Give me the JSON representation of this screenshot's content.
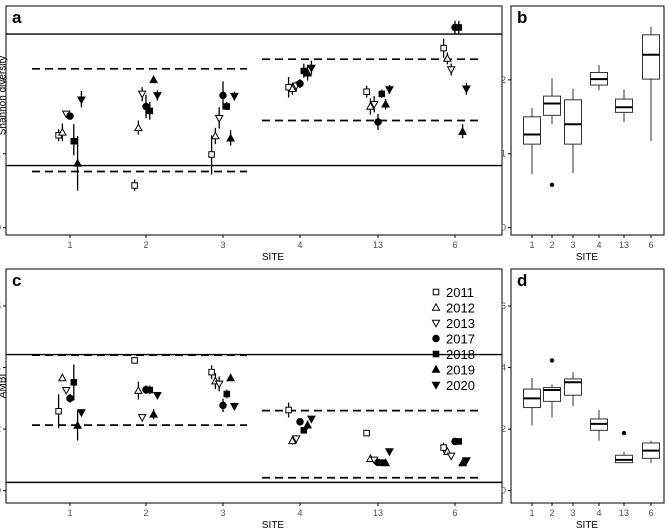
{
  "figure": {
    "symbols": {
      "2011": "open-square",
      "2012": "open-triangle-up",
      "2013": "open-triangle-down",
      "2017": "filled-circle",
      "2018": "filled-square",
      "2019": "filled-triangle-up",
      "2020": "filled-triangle-down"
    },
    "colors": {
      "marker": "#000000",
      "open_fill": "#ffffff",
      "box_fill": "#ffffff"
    }
  },
  "chart_data": [
    {
      "panel_id": "a",
      "type": "scatter",
      "title": "a",
      "xlabel": "SITE",
      "ylabel": "Shannon diversity",
      "categories": [
        "1",
        "2",
        "3",
        "4",
        "13",
        "6"
      ],
      "ylim": [
        -0.1,
        3.0
      ],
      "yticks": [
        0,
        1,
        2
      ],
      "grid": false,
      "reference_lines": [
        {
          "style": "solid",
          "y": 2.62,
          "x_from": "1",
          "x_to": "6"
        },
        {
          "style": "solid",
          "y": 0.84,
          "x_from": "1",
          "x_to": "6"
        },
        {
          "style": "dashed",
          "y": 2.15,
          "x_from": "1",
          "x_to": "3"
        },
        {
          "style": "dashed",
          "y": 0.76,
          "x_from": "1",
          "x_to": "3"
        },
        {
          "style": "dashed",
          "y": 2.28,
          "x_from": "4",
          "x_to": "6"
        },
        {
          "style": "dashed",
          "y": 1.45,
          "x_from": "4",
          "x_to": "6"
        }
      ],
      "series": [
        {
          "name": "2011",
          "points": [
            {
              "site": "1",
              "value": 1.25,
              "low": 1.17,
              "high": 1.33
            },
            {
              "site": "2",
              "value": 0.57,
              "low": 0.5,
              "high": 0.65
            },
            {
              "site": "3",
              "value": 0.99,
              "low": 0.72,
              "high": 1.25
            },
            {
              "site": "4",
              "value": 1.9,
              "low": 1.76,
              "high": 2.04
            },
            {
              "site": "13",
              "value": 1.84,
              "low": 1.76,
              "high": 1.92
            },
            {
              "site": "6",
              "value": 2.43,
              "low": 2.3,
              "high": 2.56
            }
          ]
        },
        {
          "name": "2012",
          "points": [
            {
              "site": "1",
              "value": 1.29,
              "low": 1.17,
              "high": 1.41
            },
            {
              "site": "2",
              "value": 1.35,
              "low": 1.26,
              "high": 1.45
            },
            {
              "site": "3",
              "value": 1.24,
              "low": 1.13,
              "high": 1.35
            },
            {
              "site": "4",
              "value": 1.88,
              "low": 1.8,
              "high": 1.96
            },
            {
              "site": "13",
              "value": 1.64,
              "low": 1.53,
              "high": 1.75
            },
            {
              "site": "6",
              "value": 2.29,
              "low": 2.21,
              "high": 2.37
            }
          ]
        },
        {
          "name": "2013",
          "points": [
            {
              "site": "1",
              "value": 1.54,
              "low": 1.52,
              "high": 1.57
            },
            {
              "site": "2",
              "value": 1.81,
              "low": 1.71,
              "high": 1.9
            },
            {
              "site": "3",
              "value": 1.48,
              "low": 1.34,
              "high": 1.63
            },
            {
              "site": "4",
              "value": 1.92,
              "low": 1.85,
              "high": 1.98
            },
            {
              "site": "13",
              "value": 1.67,
              "low": 1.56,
              "high": 1.78
            },
            {
              "site": "6",
              "value": 2.14,
              "low": 2.06,
              "high": 2.22
            }
          ]
        },
        {
          "name": "2017",
          "points": [
            {
              "site": "1",
              "value": 1.51,
              "low": 1.48,
              "high": 1.54
            },
            {
              "site": "2",
              "value": 1.64,
              "low": 1.48,
              "high": 1.8
            },
            {
              "site": "3",
              "value": 1.79,
              "low": 1.6,
              "high": 1.98
            },
            {
              "site": "4",
              "value": 1.95,
              "low": 1.89,
              "high": 2.01
            },
            {
              "site": "13",
              "value": 1.43,
              "low": 1.32,
              "high": 1.54
            },
            {
              "site": "6",
              "value": 2.71,
              "low": 2.62,
              "high": 2.8
            }
          ]
        },
        {
          "name": "2018",
          "points": [
            {
              "site": "1",
              "value": 1.17,
              "low": 0.98,
              "high": 1.4
            },
            {
              "site": "2",
              "value": 1.58,
              "low": 1.46,
              "high": 1.7
            },
            {
              "site": "3",
              "value": 1.64,
              "low": 1.59,
              "high": 1.7
            },
            {
              "site": "4",
              "value": 2.12,
              "low": 2.03,
              "high": 2.22
            },
            {
              "site": "13",
              "value": 1.81,
              "low": 1.76,
              "high": 1.87
            },
            {
              "site": "6",
              "value": 2.71,
              "low": 2.62,
              "high": 2.8
            }
          ]
        },
        {
          "name": "2019",
          "points": [
            {
              "site": "1",
              "value": 0.87,
              "low": 0.5,
              "high": 1.24
            },
            {
              "site": "2",
              "value": 2.0,
              "low": 1.97,
              "high": 2.04
            },
            {
              "site": "3",
              "value": 1.21,
              "low": 1.11,
              "high": 1.32
            },
            {
              "site": "4",
              "value": 2.09,
              "low": 1.99,
              "high": 2.2
            },
            {
              "site": "13",
              "value": 1.67,
              "low": 1.6,
              "high": 1.74
            },
            {
              "site": "6",
              "value": 1.3,
              "low": 1.21,
              "high": 1.4
            }
          ]
        },
        {
          "name": "2020",
          "points": [
            {
              "site": "1",
              "value": 1.73,
              "low": 1.63,
              "high": 1.85
            },
            {
              "site": "2",
              "value": 1.79,
              "low": 1.72,
              "high": 1.86
            },
            {
              "site": "3",
              "value": 1.78,
              "low": 1.72,
              "high": 1.84
            },
            {
              "site": "4",
              "value": 2.16,
              "low": 2.07,
              "high": 2.26
            },
            {
              "site": "13",
              "value": 1.87,
              "low": 1.81,
              "high": 1.93
            },
            {
              "site": "6",
              "value": 1.88,
              "low": 1.8,
              "high": 1.96
            }
          ]
        }
      ]
    },
    {
      "panel_id": "b",
      "type": "box",
      "title": "b",
      "xlabel": "SITE",
      "categories": [
        "1",
        "2",
        "3",
        "4",
        "13",
        "6"
      ],
      "ylim": [
        -0.1,
        3.0
      ],
      "yticks": [
        0,
        1,
        2
      ],
      "grid": false,
      "boxes": [
        {
          "site": "1",
          "min": 0.72,
          "q1": 1.13,
          "median": 1.26,
          "q3": 1.5,
          "max": 1.62,
          "outliers": []
        },
        {
          "site": "2",
          "min": 1.4,
          "q1": 1.52,
          "median": 1.68,
          "q3": 1.78,
          "max": 2.02,
          "outliers": [
            0.58
          ]
        },
        {
          "site": "3",
          "min": 0.74,
          "q1": 1.13,
          "median": 1.4,
          "q3": 1.73,
          "max": 1.88,
          "outliers": []
        },
        {
          "site": "4",
          "min": 1.86,
          "q1": 1.93,
          "median": 2.01,
          "q3": 2.1,
          "max": 2.2,
          "outliers": []
        },
        {
          "site": "13",
          "min": 1.43,
          "q1": 1.56,
          "median": 1.63,
          "q3": 1.74,
          "max": 1.87,
          "outliers": []
        },
        {
          "site": "6",
          "min": 1.17,
          "q1": 2.01,
          "median": 2.34,
          "q3": 2.61,
          "max": 2.72,
          "outliers": []
        }
      ]
    },
    {
      "panel_id": "c",
      "type": "scatter",
      "title": "c",
      "xlabel": "SITE",
      "ylabel": "AMBI",
      "categories": [
        "1",
        "2",
        "3",
        "4",
        "13",
        "6"
      ],
      "ylim": [
        -0.4,
        7.2
      ],
      "yticks": [
        0,
        2,
        4,
        6
      ],
      "grid": false,
      "legend": {
        "position": "top-right",
        "entries": [
          "2011",
          "2012",
          "2013",
          "2017",
          "2018",
          "2019",
          "2020"
        ]
      },
      "reference_lines": [
        {
          "style": "solid",
          "y": 4.42,
          "x_from": "1",
          "x_to": "6"
        },
        {
          "style": "solid",
          "y": 0.27,
          "x_from": "1",
          "x_to": "6"
        },
        {
          "style": "dashed",
          "y": 4.4,
          "x_from": "1",
          "x_to": "3"
        },
        {
          "style": "dashed",
          "y": 2.13,
          "x_from": "1",
          "x_to": "3"
        },
        {
          "style": "dashed",
          "y": 2.6,
          "x_from": "4",
          "x_to": "6"
        },
        {
          "style": "dashed",
          "y": 0.42,
          "x_from": "4",
          "x_to": "6"
        }
      ],
      "series": [
        {
          "name": "2011",
          "points": [
            {
              "site": "1",
              "value": 2.58,
              "low": 2.03,
              "high": 3.13
            },
            {
              "site": "2",
              "value": 4.23,
              "low": 4.17,
              "high": 4.3
            },
            {
              "site": "3",
              "value": 3.85,
              "low": 3.63,
              "high": 4.07
            },
            {
              "site": "4",
              "value": 2.62,
              "low": 2.38,
              "high": 2.86
            },
            {
              "site": "13",
              "value": 1.87,
              "low": 1.82,
              "high": 1.92
            },
            {
              "site": "6",
              "value": 1.4,
              "low": 1.24,
              "high": 1.56
            }
          ]
        },
        {
          "name": "2012",
          "points": [
            {
              "site": "1",
              "value": 3.66,
              "low": 3.58,
              "high": 3.75
            },
            {
              "site": "2",
              "value": 3.25,
              "low": 2.96,
              "high": 3.54
            },
            {
              "site": "3",
              "value": 3.56,
              "low": 3.3,
              "high": 3.82
            },
            {
              "site": "4",
              "value": 1.62,
              "low": 1.5,
              "high": 1.75
            },
            {
              "site": "13",
              "value": 1.04,
              "low": 0.98,
              "high": 1.1
            },
            {
              "site": "6",
              "value": 1.27,
              "low": 1.18,
              "high": 1.37
            }
          ]
        },
        {
          "name": "2013",
          "points": [
            {
              "site": "1",
              "value": 3.26,
              "low": 3.18,
              "high": 3.35
            },
            {
              "site": "2",
              "value": 2.38,
              "low": 2.33,
              "high": 2.43
            },
            {
              "site": "3",
              "value": 3.47,
              "low": 3.23,
              "high": 3.71
            },
            {
              "site": "4",
              "value": 1.69,
              "low": 1.59,
              "high": 1.8
            },
            {
              "site": "13",
              "value": 1.0,
              "low": 0.94,
              "high": 1.06
            },
            {
              "site": "6",
              "value": 1.13,
              "low": 1.04,
              "high": 1.23
            }
          ]
        },
        {
          "name": "2017",
          "points": [
            {
              "site": "1",
              "value": 3.0,
              "low": 2.86,
              "high": 3.14
            },
            {
              "site": "2",
              "value": 3.28,
              "low": 3.14,
              "high": 3.42
            },
            {
              "site": "3",
              "value": 2.77,
              "low": 2.55,
              "high": 2.99
            },
            {
              "site": "4",
              "value": 2.24,
              "low": 2.18,
              "high": 2.31
            },
            {
              "site": "13",
              "value": 0.92,
              "low": 0.84,
              "high": 1.0
            },
            {
              "site": "6",
              "value": 1.6,
              "low": 1.55,
              "high": 1.66
            }
          ]
        },
        {
          "name": "2018",
          "points": [
            {
              "site": "1",
              "value": 3.52,
              "low": 2.93,
              "high": 4.1
            },
            {
              "site": "2",
              "value": 3.27,
              "low": 3.13,
              "high": 3.41
            },
            {
              "site": "3",
              "value": 3.14,
              "low": 3.0,
              "high": 3.28
            },
            {
              "site": "4",
              "value": 1.96,
              "low": 1.86,
              "high": 2.06
            },
            {
              "site": "13",
              "value": 0.91,
              "low": 0.84,
              "high": 0.98
            },
            {
              "site": "6",
              "value": 1.6,
              "low": 1.55,
              "high": 1.66
            }
          ]
        },
        {
          "name": "2019",
          "points": [
            {
              "site": "1",
              "value": 2.12,
              "low": 1.63,
              "high": 2.6
            },
            {
              "site": "2",
              "value": 2.48,
              "low": 2.32,
              "high": 2.65
            },
            {
              "site": "3",
              "value": 3.66,
              "low": 3.56,
              "high": 3.76
            },
            {
              "site": "4",
              "value": 2.13,
              "low": 1.99,
              "high": 2.28
            },
            {
              "site": "13",
              "value": 0.9,
              "low": 0.83,
              "high": 0.97
            },
            {
              "site": "6",
              "value": 0.9,
              "low": 0.83,
              "high": 0.97
            }
          ]
        },
        {
          "name": "2020",
          "points": [
            {
              "site": "1",
              "value": 2.54,
              "low": 2.44,
              "high": 2.65
            },
            {
              "site": "2",
              "value": 3.1,
              "low": 3.05,
              "high": 3.16
            },
            {
              "site": "3",
              "value": 2.74,
              "low": 2.62,
              "high": 2.86
            },
            {
              "site": "4",
              "value": 2.33,
              "low": 2.24,
              "high": 2.42
            },
            {
              "site": "13",
              "value": 1.27,
              "low": 1.21,
              "high": 1.33
            },
            {
              "site": "6",
              "value": 0.98,
              "low": 0.9,
              "high": 1.06
            }
          ]
        }
      ]
    },
    {
      "panel_id": "d",
      "type": "box",
      "title": "d",
      "xlabel": "SITE",
      "categories": [
        "1",
        "2",
        "3",
        "4",
        "13",
        "6"
      ],
      "ylim": [
        -0.4,
        7.2
      ],
      "yticks": [
        0,
        2,
        4,
        6
      ],
      "grid": false,
      "boxes": [
        {
          "site": "1",
          "min": 2.12,
          "q1": 2.7,
          "median": 3.0,
          "q3": 3.3,
          "max": 3.66,
          "outliers": []
        },
        {
          "site": "2",
          "min": 2.38,
          "q1": 2.9,
          "median": 3.27,
          "q3": 3.35,
          "max": 3.45,
          "outliers": [
            4.23
          ]
        },
        {
          "site": "3",
          "min": 2.74,
          "q1": 3.1,
          "median": 3.52,
          "q3": 3.63,
          "max": 3.85,
          "outliers": []
        },
        {
          "site": "4",
          "min": 1.62,
          "q1": 1.96,
          "median": 2.17,
          "q3": 2.33,
          "max": 2.62,
          "outliers": []
        },
        {
          "site": "13",
          "min": 0.9,
          "q1": 0.91,
          "median": 1.0,
          "q3": 1.15,
          "max": 1.27,
          "outliers": [
            1.87
          ]
        },
        {
          "site": "6",
          "min": 0.9,
          "q1": 1.05,
          "median": 1.3,
          "q3": 1.55,
          "max": 1.62,
          "outliers": []
        }
      ]
    }
  ]
}
